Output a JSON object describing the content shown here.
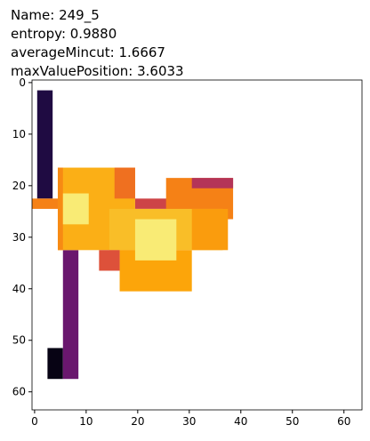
{
  "chart_data": {
    "type": "heatmap",
    "title": [
      "Name: 249_5",
      " entropy: 0.9880",
      "averageMincut: 1.6667",
      "maxValuePosition: 3.6033"
    ],
    "cmap": "inferno",
    "clim": [
      0,
      1
    ],
    "xlim": [
      -0.5,
      63.5
    ],
    "ylim": [
      63.5,
      -0.5
    ],
    "xticks": [
      0,
      10,
      20,
      30,
      40,
      50,
      60
    ],
    "yticks": [
      0,
      10,
      20,
      30,
      40,
      50,
      60
    ],
    "cells": [
      {
        "x": [
          0.5,
          3.5
        ],
        "y": [
          1.5,
          22.5
        ],
        "value": 0.12
      },
      {
        "x": [
          -0.5,
          4.5
        ],
        "y": [
          22.5,
          24.5
        ],
        "value": 0.72
      },
      {
        "x": [
          2.5,
          5.5
        ],
        "y": [
          51.5,
          57.5
        ],
        "value": 0.03
      },
      {
        "x": [
          5.5,
          8.5
        ],
        "y": [
          32.5,
          57.5
        ],
        "value": 0.3
      },
      {
        "x": [
          4.5,
          19.5
        ],
        "y": [
          16.5,
          32.5
        ],
        "value": 0.82
      },
      {
        "x": [
          4.5,
          5.5
        ],
        "y": [
          16.5,
          32.5
        ],
        "value": 0.74
      },
      {
        "x": [
          5.5,
          10.5
        ],
        "y": [
          21.5,
          27.5
        ],
        "value": 0.95
      },
      {
        "x": [
          15.5,
          19.5
        ],
        "y": [
          16.5,
          22.5
        ],
        "value": 0.68
      },
      {
        "x": [
          19.5,
          26.5
        ],
        "y": [
          22.5,
          24.5
        ],
        "value": 0.55
      },
      {
        "x": [
          25.5,
          38.5
        ],
        "y": [
          18.5,
          26.5
        ],
        "value": 0.72
      },
      {
        "x": [
          30.5,
          38.5
        ],
        "y": [
          18.5,
          20.5
        ],
        "value": 0.48
      },
      {
        "x": [
          14.5,
          36.5
        ],
        "y": [
          24.5,
          32.5
        ],
        "value": 0.85
      },
      {
        "x": [
          30.5,
          37.5
        ],
        "y": [
          24.5,
          32.5
        ],
        "value": 0.78
      },
      {
        "x": [
          16.5,
          30.5
        ],
        "y": [
          32.5,
          40.5
        ],
        "value": 0.8
      },
      {
        "x": [
          12.5,
          16.5
        ],
        "y": [
          32.5,
          36.5
        ],
        "value": 0.6
      },
      {
        "x": [
          19.5,
          27.5
        ],
        "y": [
          26.5,
          34.5
        ],
        "value": 0.95
      }
    ]
  }
}
